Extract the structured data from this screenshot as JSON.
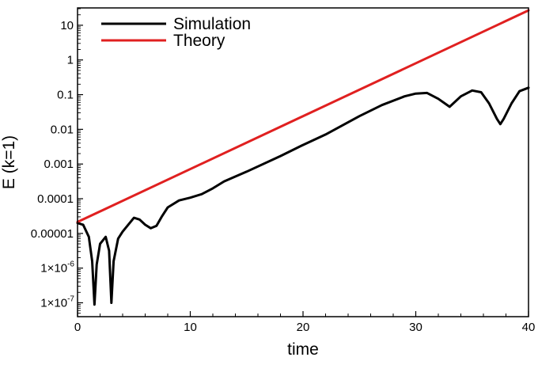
{
  "chart_data": {
    "type": "line",
    "title": "",
    "xlabel": "time",
    "ylabel": "E (k=1)",
    "xlim": [
      0,
      40
    ],
    "ylim_log10": [
      -7.4,
      1.5
    ],
    "yscale": "log",
    "grid": false,
    "legend_position": "top-left",
    "x_ticks": [
      {
        "value": 0,
        "label": "0"
      },
      {
        "value": 10,
        "label": "10"
      },
      {
        "value": 20,
        "label": "20"
      },
      {
        "value": 30,
        "label": "30"
      },
      {
        "value": 40,
        "label": "40"
      }
    ],
    "y_ticks": [
      {
        "exp": 1,
        "label": "10"
      },
      {
        "exp": 0,
        "label": "1"
      },
      {
        "exp": -1,
        "label": "0.1"
      },
      {
        "exp": -2,
        "label": "0.01"
      },
      {
        "exp": -3,
        "label": "0.001"
      },
      {
        "exp": -4,
        "label": "0.0001"
      },
      {
        "exp": -5,
        "label": "0.00001"
      },
      {
        "exp": -6,
        "label": "1×10",
        "sup": "-6"
      },
      {
        "exp": -7,
        "label": "1×10",
        "sup": "-7"
      }
    ],
    "series": [
      {
        "name": "Simulation",
        "color": "#000000",
        "points": [
          [
            0,
            -4.7
          ],
          [
            0.5,
            -4.75
          ],
          [
            1.0,
            -5.1
          ],
          [
            1.3,
            -5.8
          ],
          [
            1.5,
            -7.05
          ],
          [
            1.7,
            -5.9
          ],
          [
            2.0,
            -5.3
          ],
          [
            2.5,
            -5.1
          ],
          [
            2.8,
            -5.5
          ],
          [
            3.0,
            -7.0
          ],
          [
            3.2,
            -5.8
          ],
          [
            3.6,
            -5.15
          ],
          [
            4.0,
            -4.95
          ],
          [
            5.0,
            -4.55
          ],
          [
            5.5,
            -4.6
          ],
          [
            6.0,
            -4.75
          ],
          [
            6.5,
            -4.85
          ],
          [
            7.0,
            -4.78
          ],
          [
            7.5,
            -4.5
          ],
          [
            8.0,
            -4.25
          ],
          [
            9.0,
            -4.05
          ],
          [
            10.0,
            -3.97
          ],
          [
            11.0,
            -3.87
          ],
          [
            12.0,
            -3.7
          ],
          [
            13.0,
            -3.5
          ],
          [
            15.0,
            -3.22
          ],
          [
            18.0,
            -2.77
          ],
          [
            20.0,
            -2.45
          ],
          [
            22.0,
            -2.15
          ],
          [
            25.0,
            -1.62
          ],
          [
            27.0,
            -1.3
          ],
          [
            29.0,
            -1.05
          ],
          [
            30.0,
            -0.97
          ],
          [
            31.0,
            -0.95
          ],
          [
            32.0,
            -1.12
          ],
          [
            33.0,
            -1.35
          ],
          [
            34.0,
            -1.05
          ],
          [
            35.0,
            -0.88
          ],
          [
            35.8,
            -0.93
          ],
          [
            36.5,
            -1.25
          ],
          [
            37.2,
            -1.7
          ],
          [
            37.5,
            -1.85
          ],
          [
            37.8,
            -1.7
          ],
          [
            38.5,
            -1.25
          ],
          [
            39.2,
            -0.9
          ],
          [
            40.0,
            -0.8
          ]
        ]
      },
      {
        "name": "Theory",
        "color": "#e02020",
        "points": [
          [
            0,
            -4.67
          ],
          [
            40,
            1.43
          ]
        ]
      }
    ]
  }
}
